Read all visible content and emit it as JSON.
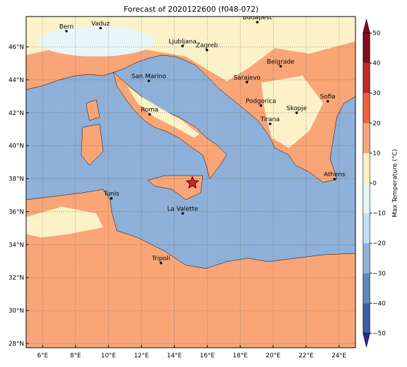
{
  "map": {
    "title": "Forecast of 2020122600 (f048-072)",
    "xlim": [
      5,
      25
    ],
    "ylim": [
      27.75,
      47.84
    ],
    "xticks": [
      {
        "value": 6,
        "label": "6°E"
      },
      {
        "value": 8,
        "label": "8°E"
      },
      {
        "value": 10,
        "label": "10°E"
      },
      {
        "value": 12,
        "label": "12°E"
      },
      {
        "value": 14,
        "label": "14°E"
      },
      {
        "value": 16,
        "label": "16°E"
      },
      {
        "value": 18,
        "label": "18°E"
      },
      {
        "value": 20,
        "label": "20°E"
      },
      {
        "value": 22,
        "label": "22°E"
      },
      {
        "value": 24,
        "label": "24°E"
      }
    ],
    "yticks": [
      {
        "value": 28,
        "label": "28°N"
      },
      {
        "value": 30,
        "label": "30°N"
      },
      {
        "value": 32,
        "label": "32°N"
      },
      {
        "value": 34,
        "label": "34°N"
      },
      {
        "value": 36,
        "label": "36°N"
      },
      {
        "value": 38,
        "label": "38°N"
      },
      {
        "value": 40,
        "label": "40°N"
      },
      {
        "value": 42,
        "label": "42°N"
      },
      {
        "value": 44,
        "label": "44°N"
      },
      {
        "value": 46,
        "label": "46°N"
      }
    ],
    "grid": true,
    "cities": [
      {
        "name": "Bern",
        "lon": 7.45,
        "lat": 46.95
      },
      {
        "name": "Vaduz",
        "lon": 9.52,
        "lat": 47.14
      },
      {
        "name": "Budapest",
        "lon": 19.04,
        "lat": 47.5
      },
      {
        "name": "Ljubljana",
        "lon": 14.5,
        "lat": 46.05
      },
      {
        "name": "Zagreb",
        "lon": 15.98,
        "lat": 45.81
      },
      {
        "name": "Belgrade",
        "lon": 20.46,
        "lat": 44.82
      },
      {
        "name": "San Marino",
        "lon": 12.45,
        "lat": 43.94
      },
      {
        "name": "Sarajevo",
        "lon": 18.41,
        "lat": 43.86
      },
      {
        "name": "Sofia",
        "lon": 23.32,
        "lat": 42.7
      },
      {
        "name": "Podgorica",
        "lon": 19.26,
        "lat": 42.44
      },
      {
        "name": "Skopje",
        "lon": 21.43,
        "lat": 42.0
      },
      {
        "name": "Roma",
        "lon": 12.5,
        "lat": 41.9
      },
      {
        "name": "Tirana",
        "lon": 19.82,
        "lat": 41.33
      },
      {
        "name": "Athens",
        "lon": 23.73,
        "lat": 37.98
      },
      {
        "name": "Tunis",
        "lon": 10.18,
        "lat": 36.81
      },
      {
        "name": "La Valette",
        "lon": 14.51,
        "lat": 35.9
      },
      {
        "name": "Tripoli",
        "lon": 13.19,
        "lat": 32.89
      }
    ],
    "star": {
      "lon": 15.1,
      "lat": 37.75,
      "color": "#e8201c"
    },
    "colorbar": {
      "label": "Max Temperature (°C)",
      "lim": [
        -50,
        50
      ],
      "colors": [
        "#2a2a8c",
        "#3a5ea8",
        "#5f88bb",
        "#8fb0d8",
        "#bfe0ee",
        "#e9f6f8",
        "#fbf3c7",
        "#f9a577",
        "#e8623e",
        "#c02a26",
        "#800d1e"
      ],
      "boundaries": [
        -50,
        -40,
        -30,
        -20,
        -10,
        0,
        10,
        20,
        30,
        40,
        50
      ],
      "ticks": [
        {
          "value": -50,
          "label": "−50"
        },
        {
          "value": -40,
          "label": "−40"
        },
        {
          "value": -30,
          "label": "−30"
        },
        {
          "value": -20,
          "label": "−20"
        },
        {
          "value": -10,
          "label": "−10"
        },
        0,
        10,
        20,
        30,
        40,
        50
      ]
    }
  }
}
